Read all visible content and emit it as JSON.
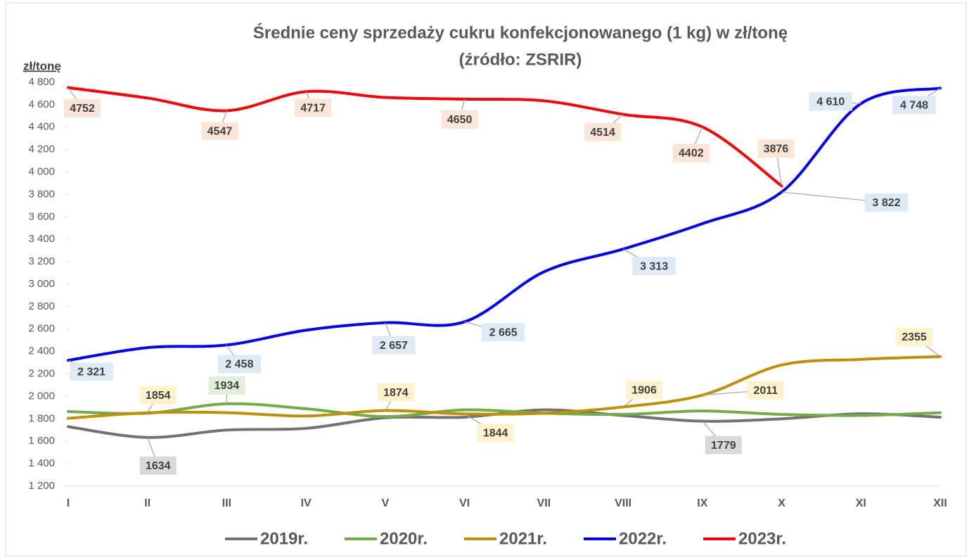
{
  "chart_data": {
    "type": "line",
    "title": "Średnie ceny sprzedaży cukru konfekcjonowanego (1 kg) w zł/tonę",
    "subtitle": "(źródło: ZSRIR)",
    "y_label": "zł/tonę",
    "categories": [
      "I",
      "II",
      "III",
      "IV",
      "V",
      "VI",
      "VII",
      "VIII",
      "IX",
      "X",
      "XI",
      "XII"
    ],
    "ylim": [
      1200,
      4800
    ],
    "yticks": [
      {
        "value": 1200,
        "label": "1 200"
      },
      {
        "value": 1400,
        "label": "1 400"
      },
      {
        "value": 1600,
        "label": "1 600"
      },
      {
        "value": 1800,
        "label": "1 800"
      },
      {
        "value": 2000,
        "label": "2 000"
      },
      {
        "value": 2200,
        "label": "2 200"
      },
      {
        "value": 2400,
        "label": "2 400"
      },
      {
        "value": 2600,
        "label": "2 600"
      },
      {
        "value": 2800,
        "label": "2 800"
      },
      {
        "value": 3000,
        "label": "3 000"
      },
      {
        "value": 3200,
        "label": "3 200"
      },
      {
        "value": 3400,
        "label": "3 400"
      },
      {
        "value": 3600,
        "label": "3 600"
      },
      {
        "value": 3800,
        "label": "3 800"
      },
      {
        "value": 4000,
        "label": "4 000"
      },
      {
        "value": 4200,
        "label": "4 200"
      },
      {
        "value": 4400,
        "label": "4 400"
      },
      {
        "value": 4600,
        "label": "4 600"
      },
      {
        "value": 4800,
        "label": "4 800"
      }
    ],
    "grid": false,
    "legend": "bottom",
    "series": [
      {
        "name": "2019r.",
        "color": "#767171",
        "label_fill": "#d9d9d9",
        "values": [
          1730,
          1634,
          1700,
          1715,
          1810,
          1815,
          1880,
          1830,
          1779,
          1800,
          1845,
          1815
        ],
        "value_labels": [
          null,
          "1634",
          null,
          null,
          null,
          null,
          null,
          null,
          "1779",
          null,
          null,
          null
        ]
      },
      {
        "name": "2020r.",
        "color": "#70ad47",
        "label_fill": "#e2efda",
        "values": [
          1865,
          1850,
          1934,
          1890,
          1820,
          1880,
          1850,
          1840,
          1870,
          1840,
          1830,
          1855
        ],
        "value_labels": [
          null,
          null,
          "1934",
          null,
          null,
          null,
          null,
          null,
          null,
          null,
          null,
          null
        ]
      },
      {
        "name": "2021r.",
        "color": "#bf9000",
        "label_fill": "#fff2cc",
        "values": [
          1805,
          1854,
          1855,
          1825,
          1874,
          1844,
          1850,
          1906,
          2011,
          2280,
          2330,
          2355
        ],
        "value_labels": [
          null,
          "1854",
          null,
          null,
          "1874",
          "1844",
          null,
          "1906",
          "2011",
          null,
          null,
          "2355"
        ]
      },
      {
        "name": "2022r.",
        "color": "#0000ff",
        "label_fill": "#deebf7",
        "values": [
          2321,
          2435,
          2458,
          2590,
          2657,
          2665,
          3110,
          3313,
          3540,
          3822,
          4610,
          4748
        ],
        "value_labels": [
          "2 321",
          null,
          "2 458",
          null,
          "2 657",
          "2 665",
          null,
          "3 313",
          null,
          "3 822",
          "4 610",
          "4 748"
        ]
      },
      {
        "name": "2023r.",
        "color": "#ff0000",
        "label_fill": "#fbe5d6",
        "values": [
          4752,
          4660,
          4547,
          4717,
          4665,
          4650,
          4635,
          4514,
          4402,
          3876,
          null,
          null
        ],
        "value_labels": [
          "4752",
          null,
          "4547",
          "4717",
          null,
          "4650",
          null,
          "4514",
          "4402",
          "3876",
          null,
          null
        ]
      }
    ]
  }
}
